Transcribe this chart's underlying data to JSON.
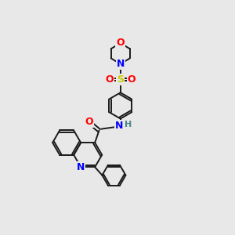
{
  "bg_color": "#e8e8e8",
  "bond_color": "#1a1a1a",
  "colors": {
    "N": "#0000ff",
    "O": "#ff0000",
    "S": "#cccc00",
    "H": "#448888",
    "C": "#1a1a1a"
  }
}
